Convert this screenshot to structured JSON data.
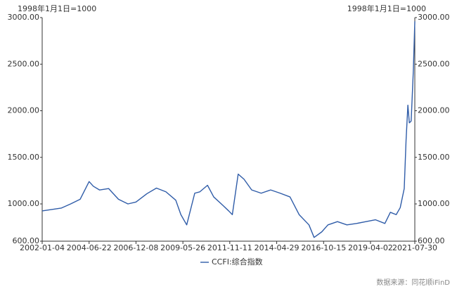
{
  "chart_data": {
    "type": "line",
    "left_axis_label": "1998年1月1日=1000",
    "right_axis_label": "1998年1月1日=1000",
    "source": "数据来源：同花顺iFinD",
    "x": [
      "2002-01-04",
      "2003-01-03",
      "2003-07-04",
      "2004-01-02",
      "2004-06-22",
      "2004-09-10",
      "2005-01-07",
      "2005-07-01",
      "2006-01-06",
      "2006-07-07",
      "2006-12-08",
      "2007-07-06",
      "2008-01-04",
      "2008-07-04",
      "2009-01-09",
      "2009-04-17",
      "2009-08-07",
      "2010-01-08",
      "2010-04-16",
      "2010-09-10",
      "2011-01-07",
      "2011-07-01",
      "2011-10-21",
      "2011-12-30",
      "2012-04-20",
      "2012-08-10",
      "2013-01-04",
      "2013-07-05",
      "2014-01-03",
      "2014-07-04",
      "2015-01-09",
      "2015-07-03",
      "2016-01-08",
      "2016-04-15",
      "2016-09-09",
      "2017-01-06",
      "2017-07-07",
      "2018-01-05",
      "2018-07-06",
      "2019-01-04",
      "2019-07-05",
      "2020-01-03",
      "2020-04-17",
      "2020-08-07",
      "2020-10-23",
      "2021-01-08",
      "2021-02-12",
      "2021-03-19",
      "2021-04-16",
      "2021-05-21",
      "2021-07-02",
      "2021-07-30"
    ],
    "series": [
      {
        "name": "CCFI:综合指数",
        "color": "#2f5ca8",
        "values": [
          925,
          955,
          1000,
          1050,
          1240,
          1190,
          1150,
          1165,
          1050,
          1000,
          1020,
          1110,
          1170,
          1130,
          1040,
          885,
          775,
          1115,
          1130,
          1200,
          1075,
          985,
          925,
          885,
          1320,
          1265,
          1150,
          1115,
          1150,
          1115,
          1075,
          885,
          775,
          640,
          700,
          775,
          810,
          775,
          790,
          810,
          830,
          790,
          910,
          885,
          960,
          1165,
          1680,
          2060,
          1870,
          1890,
          2435,
          2960
        ]
      }
    ],
    "xlim": [
      "2002-01-04",
      "2021-07-30"
    ],
    "xticks": [
      "2002-01-04",
      "2004-06-22",
      "2006-12-08",
      "2009-05-26",
      "2011-11-11",
      "2014-04-29",
      "2016-10-15",
      "2019-04-02",
      "2021-07-30"
    ],
    "ylim": [
      600,
      3000
    ],
    "yticks": [
      {
        "value": 600,
        "label": "600.00"
      },
      {
        "value": 1000,
        "label": "1000.00"
      },
      {
        "value": 1500,
        "label": "1500.00"
      },
      {
        "value": 2000,
        "label": "2000.00"
      },
      {
        "value": 2500,
        "label": "2500.00"
      },
      {
        "value": 3000,
        "label": "3000.00"
      }
    ],
    "y2lim": [
      600,
      3000
    ],
    "y2ticks": [
      {
        "value": 600,
        "label": "600.00"
      },
      {
        "value": 1000,
        "label": "1000.00"
      },
      {
        "value": 1500,
        "label": "1500.00"
      },
      {
        "value": 2000,
        "label": "2000.00"
      },
      {
        "value": 2500,
        "label": "2500.00"
      },
      {
        "value": 3000,
        "label": "3000.00"
      }
    ],
    "legend": "bottom"
  }
}
